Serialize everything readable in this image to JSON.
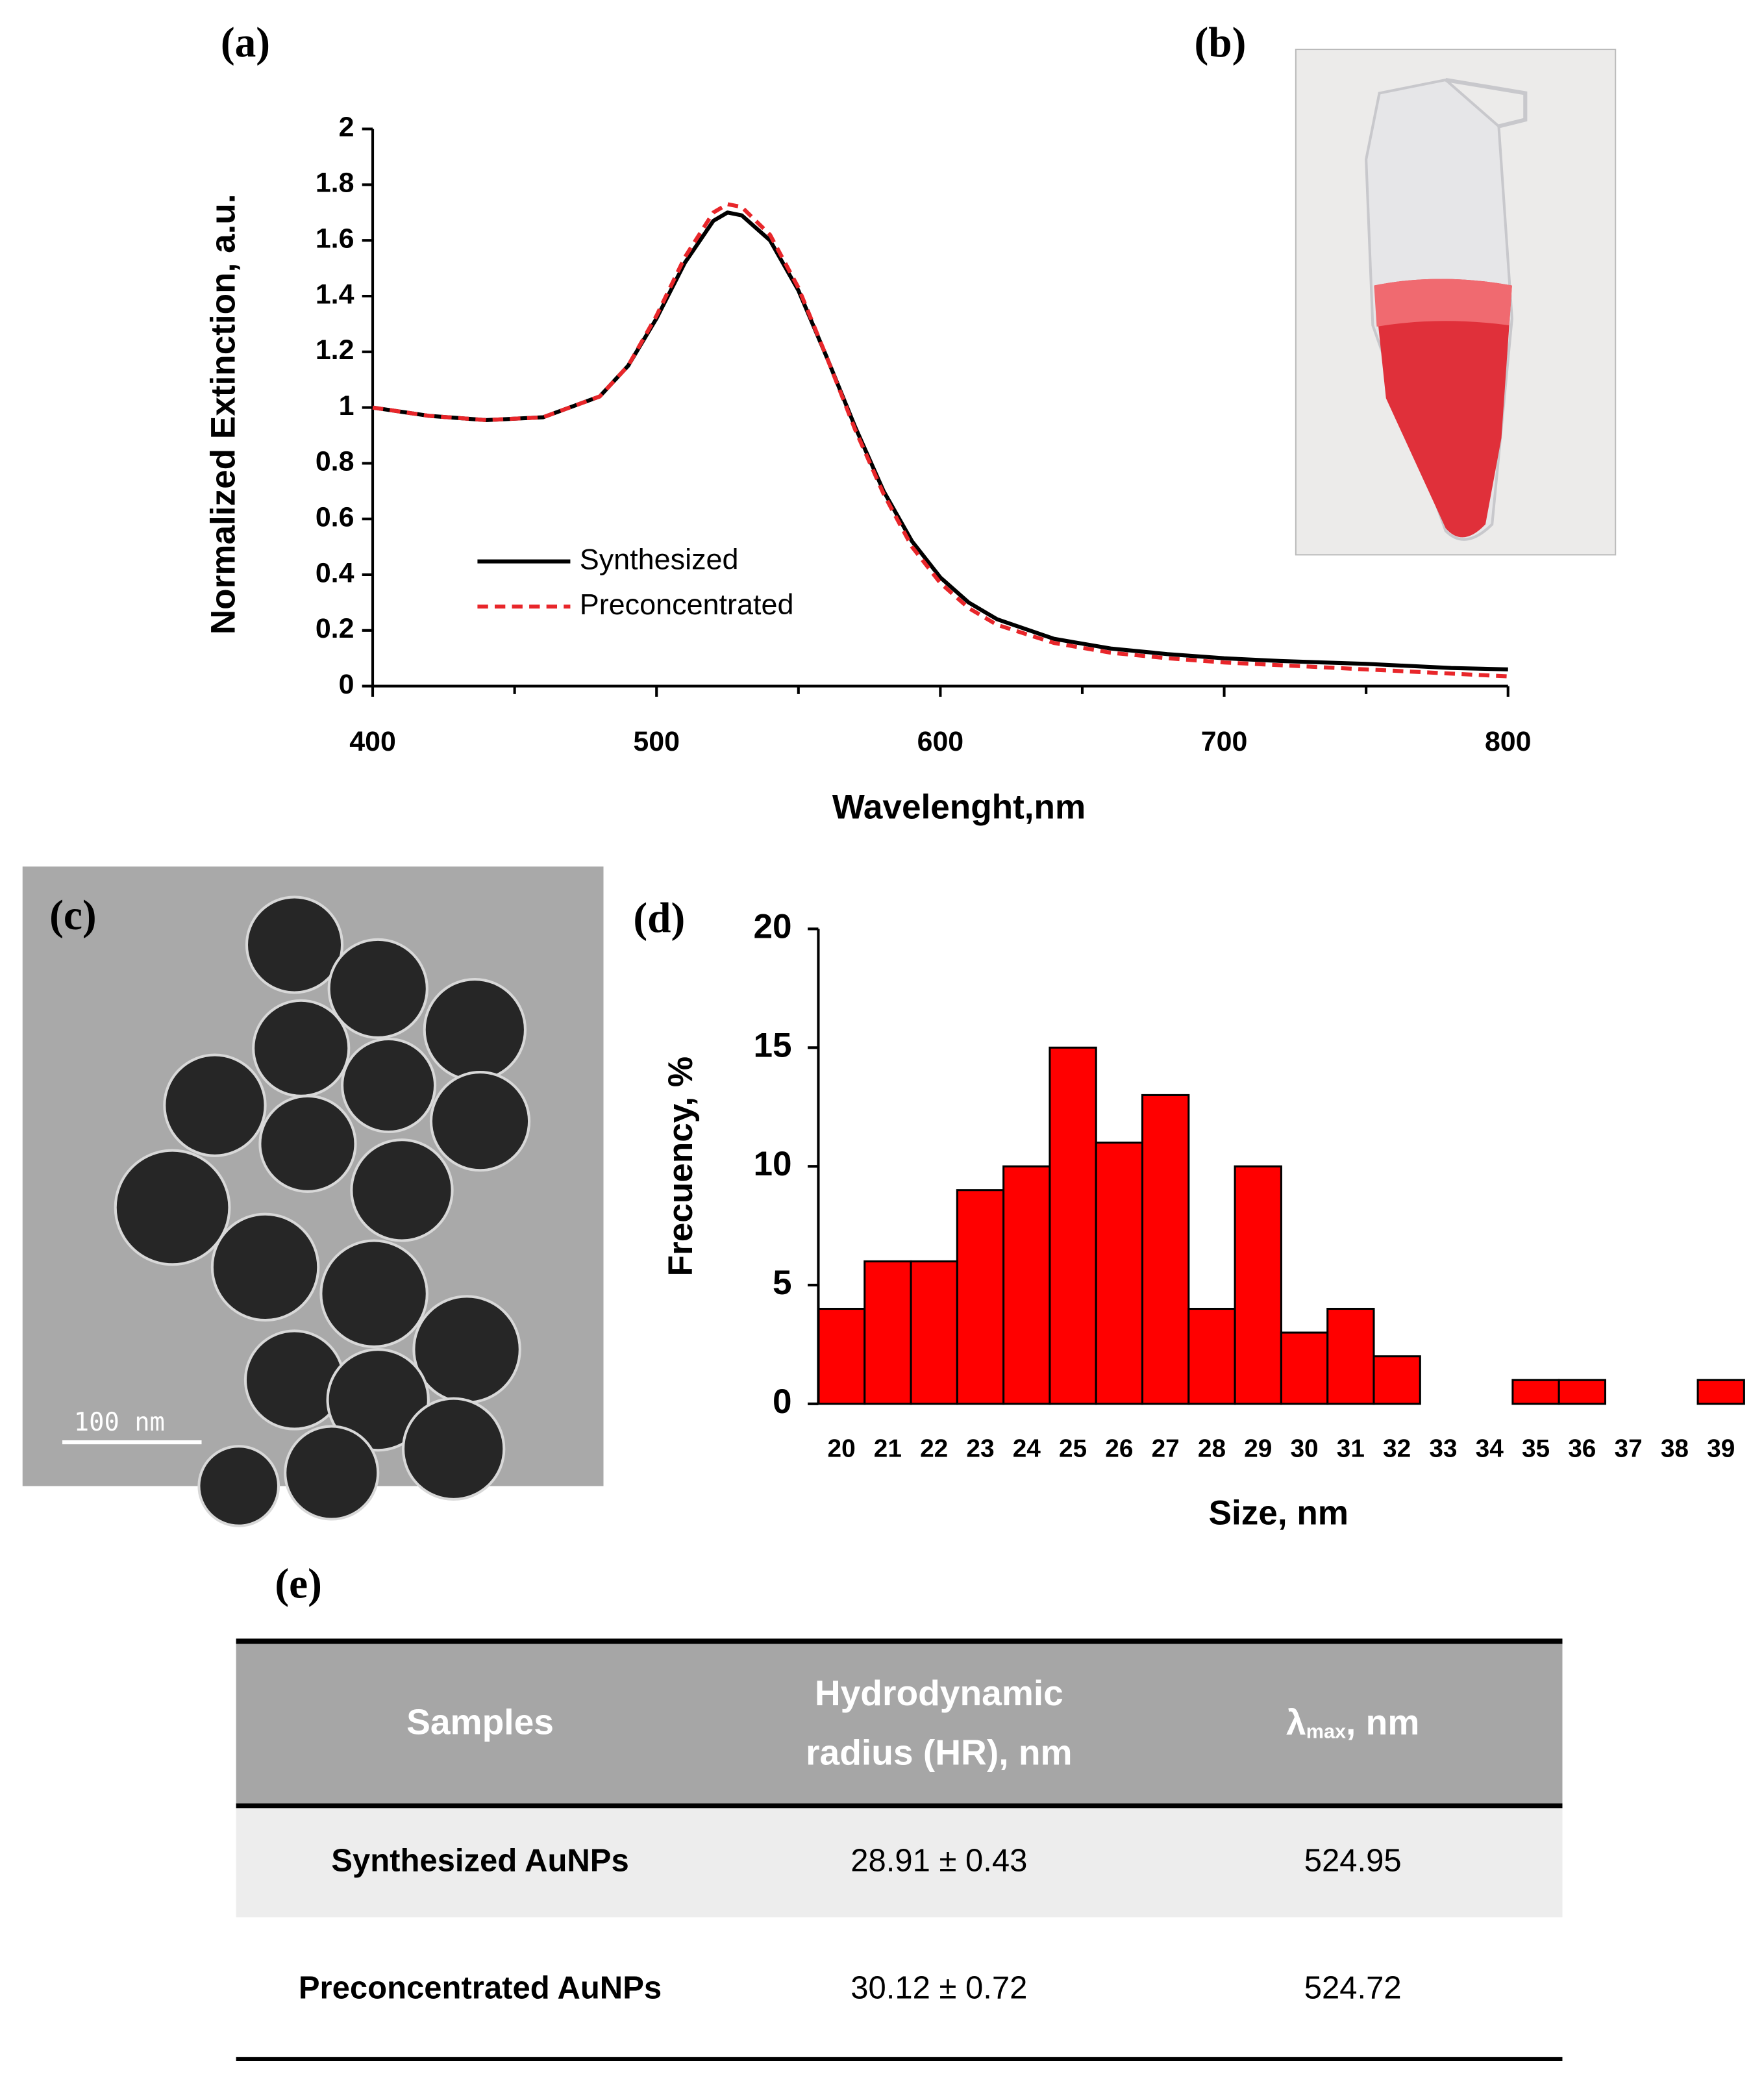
{
  "panel_labels": [
    "(a)",
    "(b)",
    "(c)",
    "(d)",
    "(e)"
  ],
  "scale_bar": "100 nm",
  "chart_data": [
    {
      "type": "line",
      "xlabel": "Wavelenght,nm",
      "ylabel": "Normalized Extinction, a.u.",
      "x": [
        400,
        420,
        440,
        460,
        480,
        490,
        500,
        510,
        520,
        525,
        530,
        540,
        550,
        560,
        570,
        580,
        590,
        600,
        610,
        620,
        640,
        660,
        680,
        700,
        720,
        750,
        780,
        800
      ],
      "series": [
        {
          "name": "Synthesized",
          "color": "#000000",
          "dash": "solid",
          "values": [
            1.0,
            0.97,
            0.955,
            0.965,
            1.04,
            1.15,
            1.32,
            1.52,
            1.67,
            1.7,
            1.69,
            1.6,
            1.42,
            1.18,
            0.93,
            0.7,
            0.52,
            0.39,
            0.3,
            0.24,
            0.17,
            0.135,
            0.115,
            0.1,
            0.09,
            0.08,
            0.065,
            0.06
          ]
        },
        {
          "name": "Preconcentrated",
          "color": "#e8262a",
          "dash": "dashed",
          "values": [
            1.0,
            0.97,
            0.955,
            0.965,
            1.04,
            1.15,
            1.33,
            1.54,
            1.7,
            1.73,
            1.72,
            1.62,
            1.43,
            1.18,
            0.92,
            0.69,
            0.5,
            0.37,
            0.28,
            0.22,
            0.155,
            0.12,
            0.1,
            0.085,
            0.075,
            0.06,
            0.045,
            0.035
          ]
        }
      ],
      "xlim": [
        400,
        800
      ],
      "xticks": [
        400,
        500,
        600,
        700,
        800
      ],
      "xminorticks": [
        450,
        550,
        650,
        750
      ],
      "ylim": [
        0,
        2
      ],
      "yticks": [
        0,
        0.2,
        0.4,
        0.6,
        0.8,
        1,
        1.2,
        1.4,
        1.6,
        1.8,
        2
      ],
      "grid": false,
      "legend": "center"
    },
    {
      "type": "bar",
      "xlabel": "Size, nm",
      "ylabel": "Frecuency, %",
      "categories": [
        "20",
        "21",
        "22",
        "23",
        "24",
        "25",
        "26",
        "27",
        "28",
        "29",
        "30",
        "31",
        "32",
        "33",
        "34",
        "35",
        "36",
        "37",
        "38",
        "39"
      ],
      "values": [
        4,
        6,
        6,
        9,
        10,
        15,
        11,
        13,
        4,
        10,
        3,
        4,
        2,
        0,
        0,
        1,
        1,
        0,
        0,
        1
      ],
      "color": "#ff0000",
      "edgecolor": "#000000",
      "ylim": [
        0,
        20
      ],
      "yticks": [
        0,
        5,
        10,
        15,
        20
      ],
      "grid": false
    }
  ],
  "table": {
    "header": [
      "Samples",
      [
        "Hydrodynamic",
        "radius (HR), nm"
      ],
      {
        "symbol": "λ",
        "sub": "max",
        "unit": ", nm"
      }
    ],
    "rows": [
      [
        "Synthesized AuNPs",
        "28.91 ± 0.43",
        "524.95"
      ],
      [
        "Preconcentrated AuNPs",
        "30.12 ± 0.72",
        "524.72"
      ]
    ]
  }
}
